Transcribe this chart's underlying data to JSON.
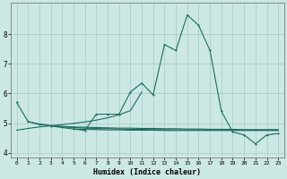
{
  "xlabel": "Humidex (Indice chaleur)",
  "bg_color": "#cce8e4",
  "grid_color": "#aacfcb",
  "line_color": "#1a6e5e",
  "series_main": [
    5.7,
    5.05,
    4.95,
    4.9,
    4.85,
    4.8,
    4.75,
    5.3,
    5.3,
    5.3,
    6.05,
    6.35,
    5.95,
    7.65,
    7.45,
    8.65,
    8.3,
    7.45,
    5.4,
    4.7,
    4.6,
    4.3,
    4.6,
    4.65
  ],
  "series_flat1_x": [
    1,
    2,
    3,
    4,
    5,
    6,
    7,
    8,
    9,
    10,
    11,
    12,
    13,
    14,
    15,
    16,
    17,
    18,
    19,
    20,
    21,
    22,
    23
  ],
  "series_flat1_y": [
    5.05,
    4.97,
    4.92,
    4.89,
    4.87,
    4.86,
    4.85,
    4.84,
    4.83,
    4.83,
    4.82,
    4.82,
    4.81,
    4.81,
    4.8,
    4.8,
    4.79,
    4.79,
    4.79,
    4.78,
    4.78,
    4.78,
    4.78
  ],
  "series_flat2_x": [
    3,
    4,
    5,
    6,
    7,
    8,
    9,
    10,
    11,
    12,
    13,
    14,
    15,
    16,
    17,
    18,
    19,
    20,
    21,
    22,
    23
  ],
  "series_flat2_y": [
    4.9,
    4.87,
    4.85,
    4.83,
    4.82,
    4.81,
    4.8,
    4.79,
    4.79,
    4.78,
    4.78,
    4.77,
    4.77,
    4.77,
    4.77,
    4.77,
    4.77,
    4.76,
    4.76,
    4.76,
    4.76
  ],
  "series_flat3_x": [
    5,
    6,
    7,
    8,
    9,
    10,
    11,
    12,
    13,
    14,
    15,
    16,
    17,
    18,
    19,
    20,
    21,
    22,
    23
  ],
  "series_flat3_y": [
    4.8,
    4.79,
    4.78,
    4.77,
    4.77,
    4.76,
    4.76,
    4.76,
    4.75,
    4.75,
    4.75,
    4.75,
    4.75,
    4.75,
    4.75,
    4.75,
    4.75,
    4.75,
    4.75
  ],
  "series_rising_x": [
    0,
    1,
    2,
    3,
    4,
    5,
    6,
    7,
    8,
    9,
    10,
    11
  ],
  "series_rising_y": [
    4.76,
    4.82,
    4.87,
    4.91,
    4.95,
    4.99,
    5.04,
    5.1,
    5.18,
    5.28,
    5.42,
    6.05
  ],
  "ylim": [
    3.85,
    9.05
  ],
  "yticks": [
    4,
    5,
    6,
    7,
    8
  ],
  "xticks": [
    0,
    1,
    2,
    3,
    4,
    5,
    6,
    7,
    8,
    9,
    10,
    11,
    12,
    13,
    14,
    15,
    16,
    17,
    18,
    19,
    20,
    21,
    22,
    23
  ]
}
